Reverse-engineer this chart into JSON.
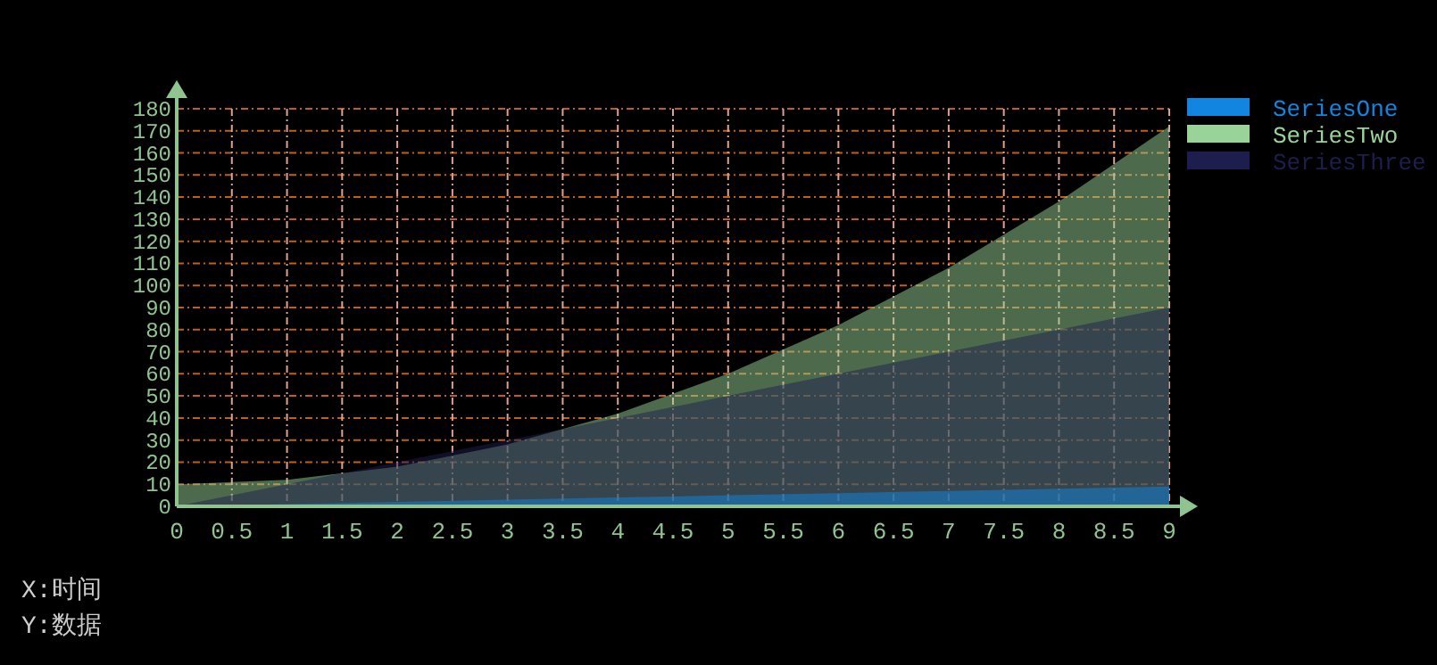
{
  "chart_data": {
    "type": "area",
    "x": [
      0,
      1,
      2,
      3,
      4,
      5,
      6,
      7,
      8,
      9
    ],
    "series": [
      {
        "name": "SeriesOne",
        "color": "#1185e0",
        "values": [
          0,
          1,
          2,
          3,
          4,
          5,
          6,
          7,
          8,
          9
        ]
      },
      {
        "name": "SeriesTwo",
        "color": "#99d39a",
        "values": [
          10,
          12,
          18,
          28,
          42,
          60,
          82,
          108,
          138,
          172
        ]
      },
      {
        "name": "SeriesThree",
        "color": "#1e1e4e",
        "values": [
          0,
          10,
          20,
          30,
          40,
          50,
          60,
          70,
          80,
          90
        ]
      }
    ],
    "xlim": [
      0,
      9
    ],
    "ylim": [
      0,
      180
    ],
    "xticks": [
      0,
      0.5,
      1,
      1.5,
      2,
      2.5,
      3,
      3.5,
      4,
      4.5,
      5,
      5.5,
      6,
      6.5,
      7,
      7.5,
      8,
      8.5,
      9
    ],
    "yticks": [
      0,
      10,
      20,
      30,
      40,
      50,
      60,
      70,
      80,
      90,
      100,
      110,
      120,
      130,
      140,
      150,
      160,
      170,
      180
    ],
    "grid": true,
    "legend": "top right",
    "annotations": [
      "X:时间",
      "Y:数据"
    ]
  }
}
